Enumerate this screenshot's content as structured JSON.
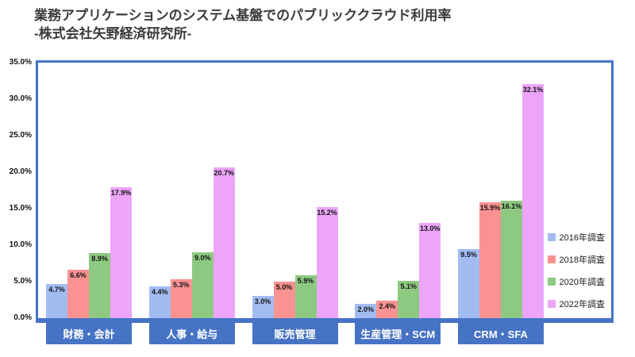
{
  "title": {
    "line1": "業務アプリケーションのシステム基盤でのパブリッククラウド利用率",
    "line2": "-株式会社矢野経済研究所-"
  },
  "chart_data": {
    "type": "bar",
    "title": "業務アプリケーションのシステム基盤でのパブリッククラウド利用率 -株式会社矢野経済研究所-",
    "categories": [
      "財務・会計",
      "人事・給与",
      "販売管理",
      "生産管理・SCM",
      "CRM・SFA"
    ],
    "series": [
      {
        "name": "2016年調査",
        "color": "#a2bcf2",
        "values": [
          4.7,
          4.4,
          3.0,
          2.0,
          9.5
        ]
      },
      {
        "name": "2018年調査",
        "color": "#fb9292",
        "values": [
          6.6,
          5.3,
          5.0,
          2.4,
          15.9
        ]
      },
      {
        "name": "2020年調査",
        "color": "#8dc981",
        "values": [
          8.9,
          9.0,
          5.9,
          5.1,
          16.1
        ]
      },
      {
        "name": "2022年調査",
        "color": "#eca5f9",
        "values": [
          17.9,
          20.7,
          15.2,
          13.0,
          32.1
        ]
      }
    ],
    "y_ticks": [
      "35.0%",
      "30.0%",
      "25.0%",
      "20.0%",
      "15.0%",
      "10.0%",
      "5.0%",
      "0.0%"
    ],
    "ylim": [
      0,
      35
    ],
    "xlabel": "",
    "ylabel": "",
    "grid": false,
    "legend_position": "right-inside-bottom",
    "value_label_suffix": "%"
  },
  "colors": {
    "axis_blue": "#4673c4",
    "title_text": "#3b3b3b",
    "value_label": "#141414",
    "category_text": "#ffffff"
  }
}
